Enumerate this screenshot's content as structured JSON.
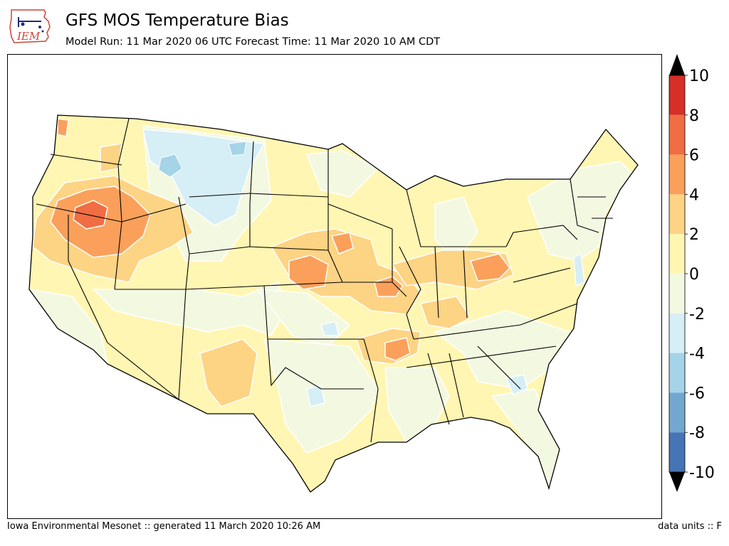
{
  "logo": {
    "text": "IEM"
  },
  "header": {
    "title": "GFS MOS Temperature Bias",
    "subtitle": "Model Run: 11 Mar 2020 06 UTC Forecast Time: 11 Mar 2020 10 AM CDT"
  },
  "colorbar": {
    "ticks": [
      "10",
      "8",
      "6",
      "4",
      "2",
      "0",
      "-2",
      "-4",
      "-6",
      "-8",
      "-10"
    ],
    "bands": [
      {
        "range": [
          8,
          10
        ],
        "color": "#d62f27"
      },
      {
        "range": [
          6,
          8
        ],
        "color": "#f16d43"
      },
      {
        "range": [
          4,
          6
        ],
        "color": "#fba05b"
      },
      {
        "range": [
          2,
          4
        ],
        "color": "#fdd384"
      },
      {
        "range": [
          0,
          2
        ],
        "color": "#fff6b3"
      },
      {
        "range": [
          -2,
          0
        ],
        "color": "#f3f9e1"
      },
      {
        "range": [
          -4,
          -2
        ],
        "color": "#d6eef5"
      },
      {
        "range": [
          -6,
          -4
        ],
        "color": "#a5d3e8"
      },
      {
        "range": [
          -8,
          -6
        ],
        "color": "#72a8d0"
      },
      {
        "range": [
          -10,
          -8
        ],
        "color": "#4575b4"
      }
    ],
    "over_color": "#000000",
    "under_color": "#000000"
  },
  "footer": {
    "left": "Iowa Environmental Mesonet :: generated 11 March 2020 10:26 AM",
    "right": "data units :: F"
  }
}
